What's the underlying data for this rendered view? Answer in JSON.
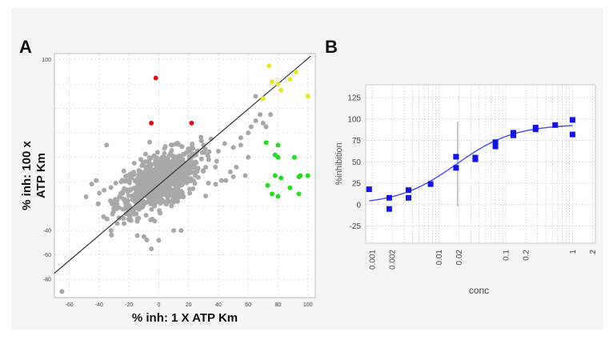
{
  "chart_data": [
    {
      "panel": "A",
      "type": "scatter",
      "xlabel": "% inh: 1 X ATP Km",
      "ylabel_lines": [
        "% inh: 100 x",
        "ATP Km"
      ],
      "xlim": [
        -70,
        105
      ],
      "ylim": [
        -95,
        105
      ],
      "xticks": [
        -60,
        -40,
        -20,
        0,
        20,
        40,
        60,
        80,
        100
      ],
      "yticks": [
        100,
        80,
        60,
        40,
        20,
        0,
        -20,
        -40,
        -60,
        -80
      ],
      "ytick_labels": [
        "100",
        "",
        "",
        "",
        "",
        "",
        "",
        "-40",
        "-60",
        "-80"
      ],
      "diagonal": {
        "from": [
          -70,
          -75
        ],
        "to": [
          102,
          103
        ]
      },
      "colors": {
        "cloud": "#a8a8a8",
        "red": "#e01010",
        "yellow": "#e6e62a",
        "green": "#22dd22",
        "line": "#333333"
      },
      "cloud": {
        "center": [
          0,
          0
        ],
        "n": 800,
        "spread_x": 14,
        "spread_y": 13,
        "correlation": 0.55
      },
      "extra_gray": [
        [
          -65,
          -90
        ],
        [
          -45,
          -2
        ],
        [
          -35,
          30
        ],
        [
          -42,
          1
        ],
        [
          -32,
          -40
        ],
        [
          -10,
          -45
        ],
        [
          -5,
          -55
        ],
        [
          0,
          -48
        ],
        [
          10,
          -40
        ],
        [
          15,
          -40
        ],
        [
          42,
          1
        ],
        [
          45,
          1
        ],
        [
          50,
          4
        ],
        [
          38,
          12
        ],
        [
          40,
          25
        ],
        [
          50,
          28
        ],
        [
          55,
          36
        ],
        [
          60,
          40
        ],
        [
          62,
          45
        ],
        [
          65,
          50
        ],
        [
          68,
          55
        ],
        [
          70,
          48
        ],
        [
          72,
          45
        ],
        [
          75,
          55
        ],
        [
          65,
          70
        ],
        [
          55,
          30
        ],
        [
          60,
          20
        ],
        [
          52,
          12
        ],
        [
          48,
          8
        ],
        [
          58,
          5
        ],
        [
          30,
          30
        ],
        [
          35,
          35
        ],
        [
          25,
          22
        ],
        [
          20,
          25
        ]
      ],
      "red": [
        [
          -2,
          85
        ],
        [
          -5,
          48
        ],
        [
          22,
          48
        ]
      ],
      "yellow": [
        [
          74,
          95
        ],
        [
          76,
          82
        ],
        [
          80,
          80
        ],
        [
          82,
          75
        ],
        [
          88,
          84
        ],
        [
          92,
          90
        ],
        [
          100,
          70
        ],
        [
          70,
          68
        ]
      ],
      "green": [
        [
          72,
          32
        ],
        [
          80,
          30
        ],
        [
          78,
          22
        ],
        [
          80,
          20
        ],
        [
          91,
          20
        ],
        [
          100,
          5
        ],
        [
          78,
          5
        ],
        [
          94,
          4
        ],
        [
          82,
          3
        ],
        [
          73,
          -3
        ],
        [
          76,
          -10
        ],
        [
          80,
          -12
        ],
        [
          88,
          -5
        ],
        [
          94,
          -10
        ],
        [
          95,
          5
        ]
      ]
    },
    {
      "panel": "B",
      "type": "scatter",
      "scale_x": "log",
      "xlabel": "conc",
      "ylabel": "%inhibition",
      "xticks": [
        0.001,
        0.002,
        0.01,
        0.02,
        0.1,
        0.2,
        1,
        2
      ],
      "xtick_labels": [
        "0.001",
        "0.002",
        "0.01",
        "0.02",
        "0.1",
        "0.2",
        "1",
        "2"
      ],
      "yticks": [
        125,
        100,
        75,
        50,
        25,
        0,
        -25
      ],
      "xlim": [
        0.0008,
        2.2
      ],
      "ylim": [
        -45,
        140
      ],
      "vline_x": 0.019,
      "colors": {
        "points": "#1515e0",
        "curve": "#4646ff",
        "grid": "#b8b8b8"
      },
      "points": [
        [
          0.0009,
          18
        ],
        [
          0.0018,
          8
        ],
        [
          0.0018,
          -5
        ],
        [
          0.0035,
          17
        ],
        [
          0.0035,
          8
        ],
        [
          0.0075,
          24
        ],
        [
          0.018,
          56
        ],
        [
          0.018,
          43
        ],
        [
          0.035,
          55
        ],
        [
          0.035,
          53
        ],
        [
          0.07,
          73
        ],
        [
          0.07,
          68
        ],
        [
          0.13,
          84
        ],
        [
          0.13,
          81
        ],
        [
          0.28,
          88
        ],
        [
          0.28,
          90
        ],
        [
          0.55,
          93
        ],
        [
          1.0,
          99
        ],
        [
          1.0,
          82
        ]
      ],
      "curve": {
        "bottom": 0,
        "top": 94,
        "ic50": 0.018,
        "hill": 1
      }
    }
  ]
}
